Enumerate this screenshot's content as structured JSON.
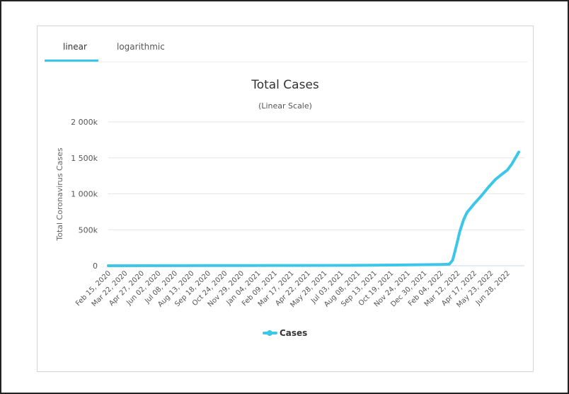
{
  "tabs": [
    {
      "label": "linear"
    },
    {
      "label": "logarithmic"
    }
  ],
  "colors": {
    "series": "#3cc6e8",
    "accent": "#3cc6e8",
    "grid": "#e6e6e6"
  },
  "chart_data": {
    "type": "line",
    "title": "Total Cases",
    "subtitle": "(Linear Scale)",
    "ylabel": "Total Coronavirus Cases",
    "xlabel": "",
    "ylim": [
      0,
      2000
    ],
    "y_unit": "k",
    "yticks": [
      {
        "v": 0,
        "label": "0"
      },
      {
        "v": 500,
        "label": "500k"
      },
      {
        "v": 1000,
        "label": "1 000k"
      },
      {
        "v": 1500,
        "label": "1 500k"
      },
      {
        "v": 2000,
        "label": "2 000k"
      }
    ],
    "x_day_range": [
      0,
      864
    ],
    "xtick_interval_days": 35,
    "xticks": [
      "Feb 15, 2020",
      "Mar 22, 2020",
      "Apr 27, 2020",
      "Jun 02, 2020",
      "Jul 08, 2020",
      "Aug 13, 2020",
      "Sep 18, 2020",
      "Oct 24, 2020",
      "Nov 29, 2020",
      "Jan 04, 2021",
      "Feb 09, 2021",
      "Mar 17, 2021",
      "Apr 22, 2021",
      "May 28, 2021",
      "Jul 03, 2021",
      "Aug 08, 2021",
      "Sep 13, 2021",
      "Oct 19, 2021",
      "Nov 24, 2021",
      "Dec 30, 2021",
      "Feb 04, 2022",
      "Mar 12, 2022",
      "Apr 17, 2022",
      "May 23, 2022",
      "Jun 28, 2022"
    ],
    "grid": true,
    "legend": "bottom-center",
    "series": [
      {
        "name": "Cases",
        "points": [
          [
            0,
            0
          ],
          [
            100,
            1
          ],
          [
            200,
            2
          ],
          [
            300,
            3
          ],
          [
            400,
            4
          ],
          [
            500,
            5
          ],
          [
            560,
            7
          ],
          [
            600,
            10
          ],
          [
            650,
            14
          ],
          [
            700,
            18
          ],
          [
            718,
            22
          ],
          [
            725,
            80
          ],
          [
            732,
            260
          ],
          [
            740,
            480
          ],
          [
            748,
            640
          ],
          [
            755,
            740
          ],
          [
            770,
            860
          ],
          [
            785,
            970
          ],
          [
            800,
            1090
          ],
          [
            815,
            1200
          ],
          [
            830,
            1280
          ],
          [
            840,
            1330
          ],
          [
            850,
            1420
          ],
          [
            864,
            1580
          ]
        ]
      }
    ]
  },
  "legend": {
    "label": "Cases"
  }
}
